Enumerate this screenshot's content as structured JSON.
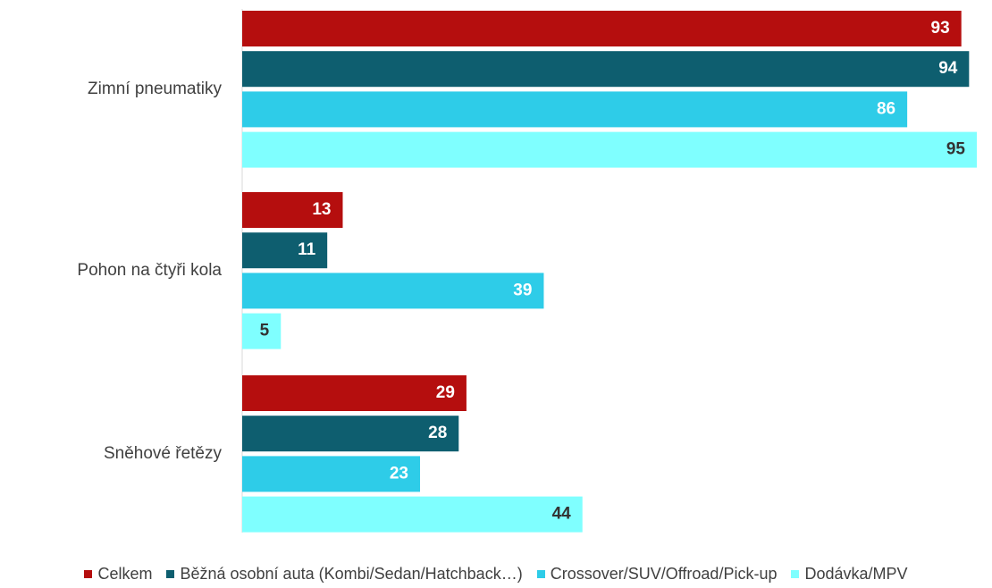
{
  "chart_data": {
    "type": "bar",
    "orientation": "horizontal",
    "categories": [
      "Zimní pneumatiky",
      "Pohon na čtyři kola",
      "Sněhové řetězy"
    ],
    "series": [
      {
        "name": "Celkem",
        "values": [
          93,
          13,
          29
        ],
        "color": "#B50E0E",
        "label_color": "#ffffff"
      },
      {
        "name": "Běžná osobní auta (Kombi/Sedan/Hatchback…)",
        "values": [
          94,
          11,
          28
        ],
        "color": "#0E5E6F",
        "label_color": "#ffffff"
      },
      {
        "name": "Crossover/SUV/Offroad/Pick-up",
        "values": [
          86,
          39,
          23
        ],
        "color": "#2ECCE8",
        "label_color": "#ffffff"
      },
      {
        "name": "Dodávka/MPV",
        "values": [
          95,
          5,
          44
        ],
        "color": "#7FFFFF",
        "label_color": "#333333"
      }
    ],
    "xlim": [
      0,
      95
    ],
    "grid": false,
    "legend_position": "bottom",
    "data_labels": true
  }
}
